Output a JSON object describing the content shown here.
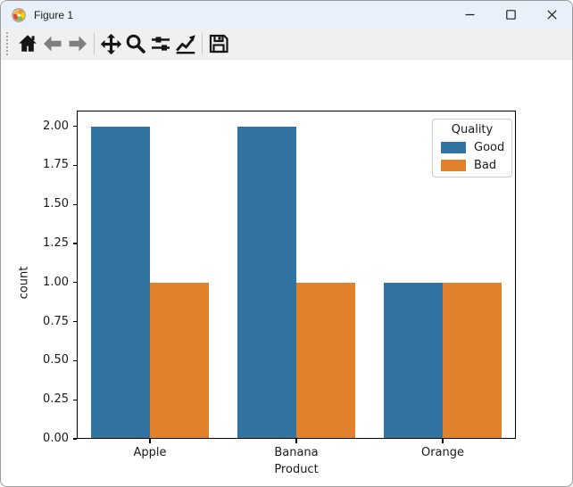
{
  "window": {
    "title": "Figure 1",
    "controls": {
      "minimize": "minimize",
      "maximize": "maximize",
      "close": "close"
    }
  },
  "toolbar": {
    "buttons": [
      {
        "name": "home",
        "icon": "home-icon",
        "enabled": true
      },
      {
        "name": "back",
        "icon": "back-arrow-icon",
        "enabled": false
      },
      {
        "name": "forward",
        "icon": "forward-arrow-icon",
        "enabled": false
      },
      {
        "name": "pan",
        "icon": "pan-arrows-icon",
        "enabled": true
      },
      {
        "name": "zoom",
        "icon": "zoom-magnifier-icon",
        "enabled": true
      },
      {
        "name": "configure-subplots",
        "icon": "sliders-icon",
        "enabled": true
      },
      {
        "name": "edit-axis",
        "icon": "line-chart-icon",
        "enabled": true
      },
      {
        "name": "save",
        "icon": "save-floppy-icon",
        "enabled": true
      }
    ]
  },
  "chart_data": {
    "type": "bar",
    "categories": [
      "Apple",
      "Banana",
      "Orange"
    ],
    "series": [
      {
        "name": "Good",
        "color": "#3274a1",
        "values": [
          2,
          2,
          1
        ]
      },
      {
        "name": "Bad",
        "color": "#e1812c",
        "values": [
          1,
          1,
          1
        ]
      }
    ],
    "title": "",
    "xlabel": "Product",
    "ylabel": "count",
    "ylim": [
      0,
      2.1
    ],
    "yticks": [
      "0.00",
      "0.25",
      "0.50",
      "0.75",
      "1.00",
      "1.25",
      "1.50",
      "1.75",
      "2.00"
    ],
    "grid": false,
    "legend": {
      "title": "Quality",
      "position": "upper right"
    }
  },
  "colors": {
    "titlebar_bg": "#e9f0f9",
    "toolbar_bg": "#f0f0f0",
    "figure_bg": "#ffffff",
    "bar_blue": "#3274a1",
    "bar_orange": "#e1812c",
    "disabled_icon": "#7f7f7f",
    "icon": "#161616"
  }
}
